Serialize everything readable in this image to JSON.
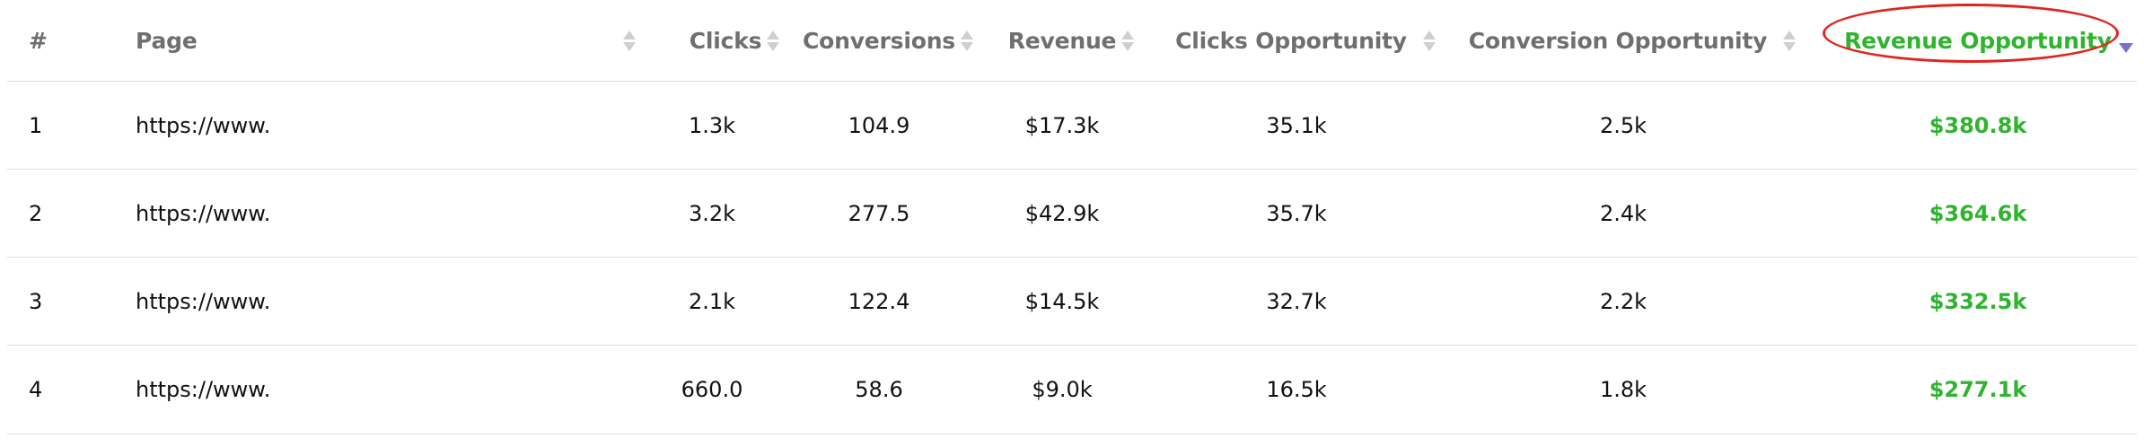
{
  "columns": {
    "index": "#",
    "page": "Page",
    "clicks": "Clicks",
    "conversions": "Conversions",
    "revenue": "Revenue",
    "clicks_opportunity": "Clicks Opportunity",
    "conversion_opportunity": "Conversion Opportunity",
    "revenue_opportunity": "Revenue Opportunity"
  },
  "sort": {
    "column": "Revenue Opportunity",
    "direction": "descending"
  },
  "colors": {
    "highlight_text": "#2fb42f",
    "annotation_ring": "#e0251e",
    "active_sort_arrow": "#7b6fd0"
  },
  "rows": [
    {
      "index": "1",
      "page": "https://www.",
      "clicks": "1.3k",
      "conversions": "104.9",
      "revenue": "$17.3k",
      "clicks_opportunity": "35.1k",
      "conversion_opportunity": "2.5k",
      "revenue_opportunity": "$380.8k"
    },
    {
      "index": "2",
      "page": "https://www.",
      "clicks": "3.2k",
      "conversions": "277.5",
      "revenue": "$42.9k",
      "clicks_opportunity": "35.7k",
      "conversion_opportunity": "2.4k",
      "revenue_opportunity": "$364.6k"
    },
    {
      "index": "3",
      "page": "https://www.",
      "clicks": "2.1k",
      "conversions": "122.4",
      "revenue": "$14.5k",
      "clicks_opportunity": "32.7k",
      "conversion_opportunity": "2.2k",
      "revenue_opportunity": "$332.5k"
    },
    {
      "index": "4",
      "page": "https://www.",
      "clicks": "660.0",
      "conversions": "58.6",
      "revenue": "$9.0k",
      "clicks_opportunity": "16.5k",
      "conversion_opportunity": "1.8k",
      "revenue_opportunity": "$277.1k"
    }
  ]
}
